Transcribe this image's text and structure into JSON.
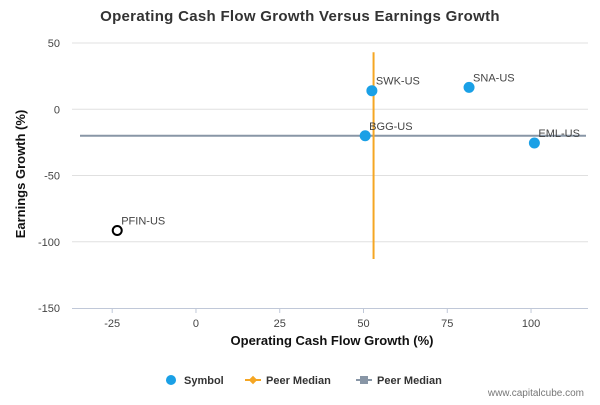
{
  "chart_data": {
    "type": "scatter",
    "title": "Operating Cash Flow Growth Versus Earnings Growth",
    "xlabel": "Operating Cash Flow Growth (%)",
    "ylabel": "Earnings Growth (%)",
    "xlim": [
      -37,
      117
    ],
    "ylim": [
      -150,
      50
    ],
    "xticks": [
      "-25",
      "0",
      "25",
      "50",
      "75",
      "100"
    ],
    "yticks": [
      "50",
      "0",
      "-50",
      "-100",
      "-150"
    ],
    "xtick_values": [
      -25,
      0,
      25,
      50,
      75,
      100
    ],
    "ytick_values": [
      50,
      0,
      -50,
      -100,
      -150
    ],
    "grid": "horizontal",
    "legend_position": "bottom",
    "points": [
      {
        "label": "SWK-US",
        "x": 52.5,
        "y": 14,
        "style": "peer"
      },
      {
        "label": "SNA-US",
        "x": 81.5,
        "y": 16.5,
        "style": "peer"
      },
      {
        "label": "BGG-US",
        "x": 50.5,
        "y": -20,
        "style": "peer"
      },
      {
        "label": "EML-US",
        "x": 101,
        "y": -25.5,
        "style": "peer"
      },
      {
        "label": "PFIN-US",
        "x": -23.5,
        "y": -91.5,
        "style": "subject"
      }
    ],
    "peer_median_x": 53,
    "peer_median_y": -20,
    "peer_median_x_yrange": [
      -113,
      43
    ],
    "legend": [
      {
        "label": "Symbol",
        "marker": "circle"
      },
      {
        "label": "Peer Median",
        "marker": "diamond-line"
      },
      {
        "label": "Peer Median",
        "marker": "square-line"
      }
    ],
    "colors": {
      "peer_point": "#1aa0e6",
      "subject_point": "#000000",
      "median_vertical": "#f5a623",
      "median_horizontal": "#8896a6",
      "grid": "#e0e0e0",
      "axis": "#c0c8d8"
    }
  },
  "footer": {
    "credit": "www.capitalcube.com"
  }
}
